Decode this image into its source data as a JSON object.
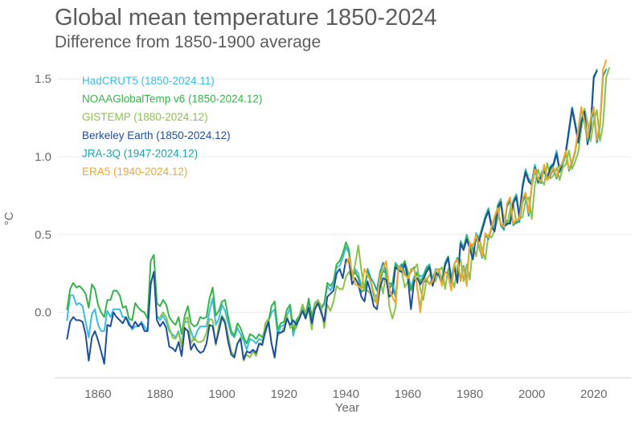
{
  "title": "Global mean temperature 1850-2024",
  "subtitle": "Difference from 1850-1900 average",
  "chart_data": {
    "type": "line",
    "xlabel": "Year",
    "ylabel": "°C",
    "xlim": [
      1846,
      2032
    ],
    "ylim": [
      -0.42,
      1.62
    ],
    "x_ticks": [
      1860,
      1880,
      1900,
      1920,
      1940,
      1960,
      1980,
      2000,
      2020
    ],
    "y_ticks": [
      0.0,
      0.5,
      1.0,
      1.5
    ],
    "y_tick_labels": [
      "0.0",
      "0.5",
      "1.0",
      "1.5"
    ],
    "grid": "horizontal",
    "legend_position": "top-left",
    "series": [
      {
        "name": "HadCRUT5 (1850-2024.11)",
        "color": "#3cbde0",
        "x_start": 1850,
        "values": [
          -0.05,
          0.11,
          0.11,
          0.05,
          0.06,
          0.04,
          -0.06,
          -0.16,
          -0.01,
          0.02,
          -0.08,
          -0.12,
          -0.12,
          0.01,
          -0.03,
          0.02,
          0.02,
          0.02,
          -0.03,
          -0.03,
          -0.06,
          -0.11,
          -0.09,
          -0.09,
          -0.06,
          -0.09,
          -0.12,
          0.18,
          0.26,
          -0.02,
          -0.05,
          -0.02,
          -0.06,
          -0.12,
          -0.14,
          -0.16,
          -0.12,
          -0.21,
          -0.06,
          -0.06,
          -0.12,
          -0.18,
          -0.12,
          -0.09,
          -0.09,
          -0.09,
          0.01,
          0.09,
          -0.08,
          -0.04,
          0.05,
          0.01,
          -0.07,
          -0.14,
          -0.16,
          -0.1,
          -0.14,
          -0.18,
          -0.24,
          -0.17,
          -0.18,
          -0.2,
          -0.17,
          -0.18,
          -0.13,
          -0.06,
          0.0,
          0.02,
          -0.14,
          -0.09,
          -0.08,
          -0.02,
          0.03,
          -0.15,
          -0.07,
          -0.04,
          0.03,
          -0.04,
          0.07,
          -0.05,
          0.04,
          0.06,
          0.02,
          0.05,
          0.17,
          0.14,
          0.18,
          0.29,
          0.3,
          0.35,
          0.42,
          0.38,
          0.22,
          0.28,
          0.25,
          0.17,
          0.15,
          0.26,
          0.19,
          0.12,
          0.1,
          0.22,
          0.28,
          0.24,
          0.16,
          0.18,
          0.32,
          0.29,
          0.29,
          0.33,
          0.24,
          0.16,
          0.23,
          0.26,
          0.23,
          0.24,
          0.29,
          0.31,
          0.21,
          0.28,
          0.27,
          0.21,
          0.32,
          0.36,
          0.22,
          0.31,
          0.21,
          0.46,
          0.42,
          0.5,
          0.43,
          0.36,
          0.51,
          0.48,
          0.55,
          0.62,
          0.67,
          0.57,
          0.55,
          0.69,
          0.73,
          0.56,
          0.59,
          0.59,
          0.72,
          0.76,
          0.63,
          0.82,
          0.92,
          0.86,
          0.84,
          0.95,
          0.85,
          0.89,
          0.93,
          0.87,
          0.94,
          0.96,
          1.04,
          0.92,
          0.97,
          1.04,
          1.18,
          1.32,
          1.22,
          1.11,
          1.24,
          1.3,
          1.1,
          1.2,
          1.52,
          1.55
        ]
      },
      {
        "name": "NOAAGlobalTemp v6 (1850-2024.12)",
        "color": "#36b34a",
        "x_start": 1850,
        "values": [
          0.02,
          0.15,
          0.19,
          0.16,
          0.17,
          0.15,
          0.12,
          0.03,
          0.18,
          0.15,
          0.05,
          0.0,
          -0.03,
          0.08,
          0.08,
          0.14,
          0.14,
          0.11,
          0.03,
          0.04,
          -0.04,
          -0.05,
          0.06,
          0.03,
          0.01,
          0.0,
          -0.04,
          0.33,
          0.37,
          0.06,
          0.04,
          0.08,
          0.05,
          -0.03,
          -0.06,
          -0.08,
          -0.03,
          -0.14,
          -0.02,
          0.04,
          -0.07,
          -0.09,
          -0.08,
          -0.03,
          -0.04,
          -0.03,
          0.09,
          0.16,
          -0.02,
          0.01,
          0.07,
          0.08,
          -0.03,
          -0.12,
          -0.15,
          -0.07,
          -0.1,
          -0.16,
          -0.2,
          -0.14,
          -0.15,
          -0.17,
          -0.14,
          -0.16,
          -0.1,
          -0.06,
          0.04,
          0.07,
          -0.11,
          -0.07,
          -0.06,
          0.02,
          0.05,
          -0.12,
          -0.05,
          -0.02,
          0.05,
          -0.02,
          0.09,
          -0.03,
          0.06,
          0.08,
          0.03,
          0.06,
          0.19,
          0.17,
          0.2,
          0.31,
          0.33,
          0.38,
          0.45,
          0.4,
          0.23,
          0.26,
          0.22,
          0.13,
          0.15,
          0.27,
          0.2,
          0.11,
          0.07,
          0.2,
          0.27,
          0.25,
          0.15,
          0.18,
          0.31,
          0.28,
          0.29,
          0.33,
          0.26,
          0.14,
          0.21,
          0.25,
          0.2,
          0.23,
          0.28,
          0.3,
          0.2,
          0.26,
          0.25,
          0.2,
          0.31,
          0.36,
          0.2,
          0.3,
          0.2,
          0.45,
          0.41,
          0.49,
          0.42,
          0.35,
          0.5,
          0.47,
          0.54,
          0.61,
          0.66,
          0.56,
          0.53,
          0.68,
          0.72,
          0.55,
          0.58,
          0.58,
          0.71,
          0.75,
          0.61,
          0.81,
          0.91,
          0.85,
          0.82,
          0.93,
          0.83,
          0.87,
          0.91,
          0.85,
          0.92,
          0.94,
          1.02,
          0.9,
          0.95,
          1.02,
          1.16,
          1.3,
          1.2,
          1.09,
          1.22,
          1.28,
          1.08,
          1.18,
          1.5,
          1.56
        ]
      },
      {
        "name": "GISTEMP (1880-2024.12)",
        "color": "#8bc34a",
        "x_start": 1880,
        "values": [
          -0.03,
          0.0,
          -0.03,
          -0.1,
          -0.16,
          -0.17,
          -0.13,
          -0.22,
          -0.05,
          -0.03,
          -0.2,
          -0.16,
          -0.19,
          -0.19,
          -0.18,
          -0.13,
          -0.04,
          -0.05,
          -0.21,
          -0.08,
          -0.02,
          -0.05,
          -0.15,
          -0.25,
          -0.28,
          -0.2,
          -0.16,
          -0.31,
          -0.27,
          -0.29,
          -0.25,
          -0.28,
          -0.2,
          -0.2,
          -0.07,
          -0.04,
          -0.2,
          -0.28,
          -0.15,
          -0.13,
          -0.1,
          -0.02,
          -0.1,
          -0.08,
          -0.1,
          -0.02,
          0.05,
          0.0,
          0.02,
          -0.11,
          0.05,
          0.08,
          0.04,
          -0.1,
          0.05,
          0.01,
          0.07,
          0.17,
          0.15,
          0.15,
          0.23,
          0.26,
          0.22,
          0.31,
          0.43,
          0.27,
          0.14,
          0.14,
          0.12,
          0.08,
          0.06,
          0.21,
          0.12,
          0.27,
          0.04,
          -0.04,
          0.03,
          0.3,
          0.27,
          0.16,
          0.2,
          0.28,
          0.28,
          0.31,
          0.15,
          0.08,
          0.21,
          0.24,
          0.23,
          0.2,
          0.27,
          0.29,
          0.15,
          0.28,
          0.23,
          0.16,
          0.3,
          0.34,
          0.2,
          0.31,
          0.21,
          0.44,
          0.36,
          0.48,
          0.4,
          0.34,
          0.5,
          0.48,
          0.53,
          0.6,
          0.72,
          0.6,
          0.56,
          0.66,
          0.71,
          0.57,
          0.61,
          0.61,
          0.72,
          0.74,
          0.6,
          0.82,
          0.92,
          0.85,
          0.82,
          0.96,
          0.86,
          0.88,
          0.93,
          0.85,
          0.93,
          0.95,
          1.04,
          0.92,
          0.97,
          1.03,
          1.18,
          1.31,
          1.22,
          1.1,
          1.23,
          1.3,
          1.1,
          1.21,
          1.51,
          1.57
        ]
      },
      {
        "name": "Berkeley Earth (1850-2024.12)",
        "color": "#1f4e9c",
        "x_start": 1850,
        "values": [
          -0.17,
          -0.06,
          -0.03,
          -0.05,
          -0.05,
          -0.06,
          -0.14,
          -0.31,
          -0.16,
          -0.12,
          -0.18,
          -0.25,
          -0.33,
          -0.08,
          -0.09,
          0.0,
          -0.03,
          -0.05,
          -0.07,
          -0.03,
          -0.08,
          -0.1,
          -0.06,
          -0.09,
          -0.07,
          -0.12,
          -0.12,
          0.18,
          0.26,
          -0.05,
          -0.09,
          -0.06,
          -0.1,
          -0.22,
          -0.23,
          -0.25,
          -0.19,
          -0.28,
          -0.1,
          -0.12,
          -0.24,
          -0.2,
          -0.24,
          -0.26,
          -0.25,
          -0.2,
          -0.08,
          -0.09,
          -0.2,
          -0.12,
          -0.03,
          -0.07,
          -0.19,
          -0.27,
          -0.29,
          -0.2,
          -0.17,
          -0.3,
          -0.25,
          -0.26,
          -0.24,
          -0.26,
          -0.2,
          -0.21,
          -0.12,
          -0.06,
          -0.2,
          -0.29,
          -0.13,
          -0.13,
          -0.12,
          -0.04,
          -0.08,
          -0.05,
          -0.08,
          -0.04,
          0.01,
          -0.04,
          0.03,
          -0.07,
          0.02,
          0.06,
          0.0,
          -0.06,
          0.1,
          0.12,
          0.14,
          0.25,
          0.28,
          0.22,
          0.34,
          0.33,
          0.18,
          0.22,
          0.18,
          0.1,
          0.07,
          0.2,
          0.13,
          0.04,
          0.02,
          0.16,
          0.22,
          0.21,
          0.1,
          0.12,
          0.29,
          0.27,
          0.26,
          0.31,
          0.22,
          0.02,
          0.2,
          0.22,
          0.18,
          0.21,
          0.26,
          0.29,
          0.17,
          0.25,
          0.24,
          0.18,
          0.3,
          0.35,
          0.2,
          0.29,
          0.19,
          0.44,
          0.4,
          0.47,
          0.41,
          0.34,
          0.49,
          0.46,
          0.53,
          0.6,
          0.65,
          0.55,
          0.52,
          0.67,
          0.71,
          0.55,
          0.57,
          0.57,
          0.7,
          0.74,
          0.61,
          0.8,
          0.9,
          0.84,
          0.82,
          0.93,
          0.84,
          0.87,
          0.91,
          0.86,
          0.93,
          0.95,
          1.02,
          0.91,
          0.96,
          1.03,
          1.17,
          1.31,
          1.21,
          1.09,
          1.22,
          1.29,
          1.08,
          1.19,
          1.51,
          1.55
        ]
      },
      {
        "name": "JRA-3Q (1947-2024.12)",
        "color": "#20a3a8",
        "x_start": 1947,
        "values": [
          0.28,
          0.22,
          0.19,
          0.14,
          0.26,
          0.32,
          0.26,
          0.18,
          0.19,
          0.1,
          0.28,
          0.31,
          0.25,
          0.23,
          0.26,
          0.29,
          0.16,
          0.02,
          0.19,
          0.21,
          0.18,
          0.22,
          0.27,
          0.28,
          0.18,
          0.26,
          0.25,
          0.19,
          0.31,
          0.35,
          0.21,
          0.3,
          0.2,
          0.45,
          0.41,
          0.49,
          0.42,
          0.35,
          0.5,
          0.47,
          0.54,
          0.61,
          0.66,
          0.56,
          0.53,
          0.68,
          0.72,
          0.56,
          0.58,
          0.58,
          0.71,
          0.75,
          0.62,
          0.81,
          0.91,
          0.85,
          0.83,
          0.94,
          0.85,
          0.88,
          0.92,
          0.86,
          0.93,
          0.95,
          1.03,
          0.91,
          0.96,
          1.03,
          1.17,
          1.31,
          1.22,
          1.1,
          1.23,
          1.29,
          1.09,
          1.2,
          1.52,
          1.56
        ]
      },
      {
        "name": "ERA5 (1940-2024.12)",
        "color": "#f0a82a",
        "x_start": 1940,
        "values": [
          0.31,
          0.35,
          0.26,
          0.18,
          0.17,
          0.15,
          0.28,
          0.24,
          0.2,
          0.13,
          0.05,
          0.24,
          0.28,
          0.33,
          0.15,
          0.1,
          0.06,
          0.3,
          0.28,
          0.24,
          0.22,
          0.27,
          0.28,
          0.16,
          0.0,
          0.2,
          0.22,
          0.18,
          0.2,
          0.27,
          0.28,
          0.17,
          0.26,
          0.24,
          0.14,
          0.31,
          0.34,
          0.2,
          0.29,
          0.17,
          0.45,
          0.42,
          0.5,
          0.43,
          0.36,
          0.51,
          0.48,
          0.55,
          0.62,
          0.67,
          0.57,
          0.55,
          0.7,
          0.74,
          0.57,
          0.6,
          0.6,
          0.73,
          0.77,
          0.64,
          0.82,
          0.92,
          0.86,
          0.84,
          0.95,
          0.85,
          0.89,
          0.93,
          0.87,
          0.94,
          0.96,
          1.04,
          0.92,
          0.97,
          1.04,
          1.18,
          1.32,
          1.23,
          1.12,
          1.25,
          1.32,
          1.11,
          1.22,
          1.56,
          1.62
        ]
      }
    ]
  }
}
